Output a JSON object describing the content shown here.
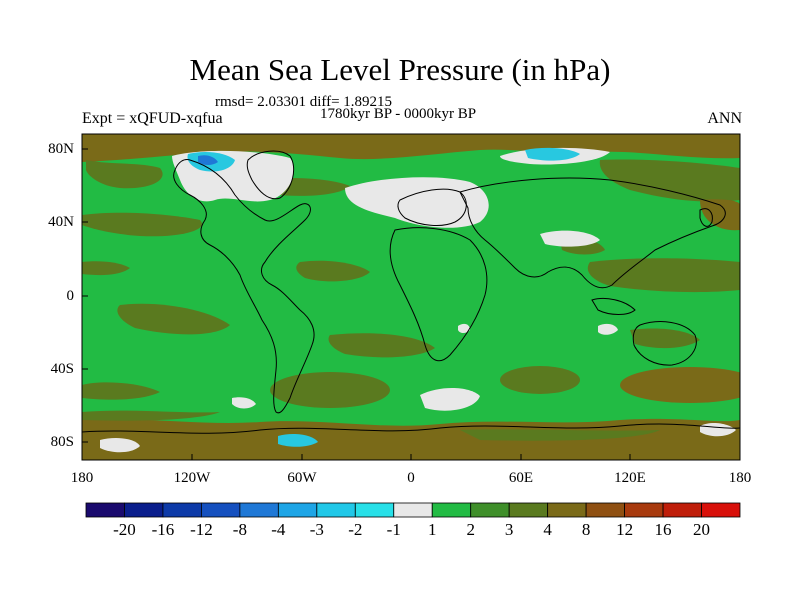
{
  "title": "Mean Sea Level Pressure (in hPa)",
  "stats": "rmsd= 2.03301 diff= 1.89215",
  "period": "1780kyr BP - 0000kyr BP",
  "experiment": "Expt = xQFUD-xqfua",
  "season": "ANN",
  "y_ticks": [
    "80N",
    "40N",
    "0",
    "40S",
    "80S"
  ],
  "x_ticks": [
    "180",
    "120W",
    "60W",
    "0",
    "60E",
    "120E",
    "180"
  ],
  "colorbar": {
    "labels": [
      "-20",
      "-16",
      "-12",
      "-8",
      "-4",
      "-3",
      "-2",
      "-1",
      "1",
      "2",
      "3",
      "4",
      "8",
      "12",
      "16",
      "20"
    ],
    "colors": [
      "#1a0a6e",
      "#0a1e8c",
      "#0d3aa8",
      "#1550bf",
      "#1f78d6",
      "#1ea5e6",
      "#21c8e8",
      "#28e0e8",
      "#e8e8e8",
      "#22bb44",
      "#3f8f2a",
      "#5a7a1f",
      "#7a6a18",
      "#8f5012",
      "#a83a0e",
      "#bf1e0a",
      "#d8100a"
    ]
  },
  "palette": {
    "green": "#22bb44",
    "olive": "#5a7a1f",
    "brown": "#7a6a18",
    "white": "#e8e8e8",
    "cyan": "#28c8e0",
    "blue": "#1f78d6"
  }
}
